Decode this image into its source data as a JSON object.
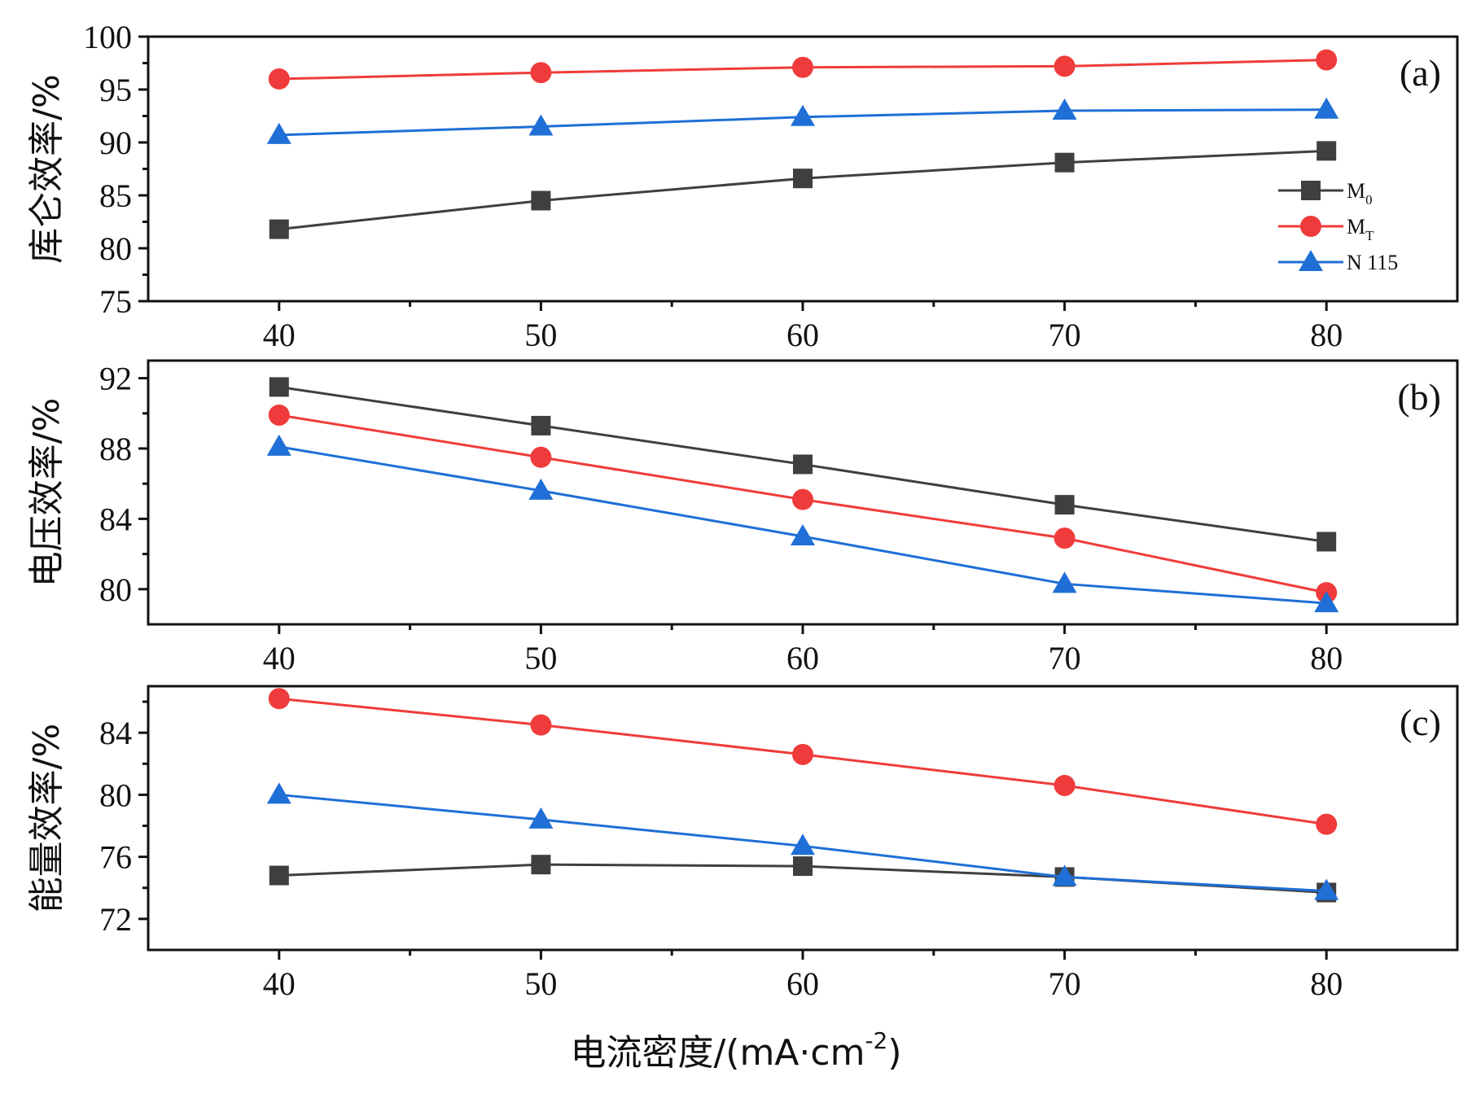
{
  "colors": {
    "M0": "#3f3f3f",
    "MT": "#ef3b3b",
    "N115": "#1f6fd6"
  },
  "legend": [
    {
      "key": "M0",
      "base": "M",
      "sub": "0",
      "marker": "square"
    },
    {
      "key": "MT",
      "base": "M",
      "sub": "T",
      "marker": "circle"
    },
    {
      "key": "N115",
      "base": "N 115",
      "sub": "",
      "marker": "triangle"
    }
  ],
  "xlabel": "电流密度/(mA·cm",
  "xlabel_sup": "-2",
  "xlabel_end": ")",
  "chart_data": [
    {
      "type": "line",
      "panel": "(a)",
      "ylabel": "库仑效率/%",
      "ylim": [
        75,
        100
      ],
      "yticks": [
        "75",
        "80",
        "85",
        "90",
        "95",
        "100"
      ],
      "xlim": [
        35,
        85
      ],
      "x": [
        40,
        50,
        60,
        70,
        80
      ],
      "xticks": [
        "40",
        "50",
        "60",
        "70",
        "80"
      ],
      "series": [
        {
          "name": "M0",
          "values": [
            81.8,
            84.5,
            86.6,
            88.1,
            89.2
          ]
        },
        {
          "name": "MT",
          "values": [
            96.0,
            96.6,
            97.1,
            97.2,
            97.8
          ]
        },
        {
          "name": "N 115",
          "values": [
            90.7,
            91.5,
            92.4,
            93.0,
            93.1
          ]
        }
      ]
    },
    {
      "type": "line",
      "panel": "(b)",
      "ylabel": "电压效率/%",
      "ylim": [
        78,
        93
      ],
      "yticks": [
        "80",
        "84",
        "88",
        "92"
      ],
      "xlim": [
        35,
        85
      ],
      "x": [
        40,
        50,
        60,
        70,
        80
      ],
      "xticks": [
        "40",
        "50",
        "60",
        "70",
        "80"
      ],
      "series": [
        {
          "name": "M0",
          "values": [
            91.5,
            89.3,
            87.1,
            84.8,
            82.7
          ]
        },
        {
          "name": "MT",
          "values": [
            89.9,
            87.5,
            85.1,
            82.9,
            79.8
          ]
        },
        {
          "name": "N 115",
          "values": [
            88.1,
            85.6,
            83.0,
            80.3,
            79.2
          ]
        }
      ]
    },
    {
      "type": "line",
      "panel": "(c)",
      "ylabel": "能量效率/%",
      "ylim": [
        70,
        87
      ],
      "yticks": [
        "72",
        "76",
        "80",
        "84"
      ],
      "xlim": [
        35,
        85
      ],
      "x": [
        40,
        50,
        60,
        70,
        80
      ],
      "xticks": [
        "40",
        "50",
        "60",
        "70",
        "80"
      ],
      "series": [
        {
          "name": "M0",
          "values": [
            74.8,
            75.5,
            75.4,
            74.7,
            73.7
          ]
        },
        {
          "name": "MT",
          "values": [
            86.2,
            84.5,
            82.6,
            80.6,
            78.1
          ]
        },
        {
          "name": "N 115",
          "values": [
            80.0,
            78.4,
            76.7,
            74.7,
            73.8
          ]
        }
      ]
    }
  ]
}
